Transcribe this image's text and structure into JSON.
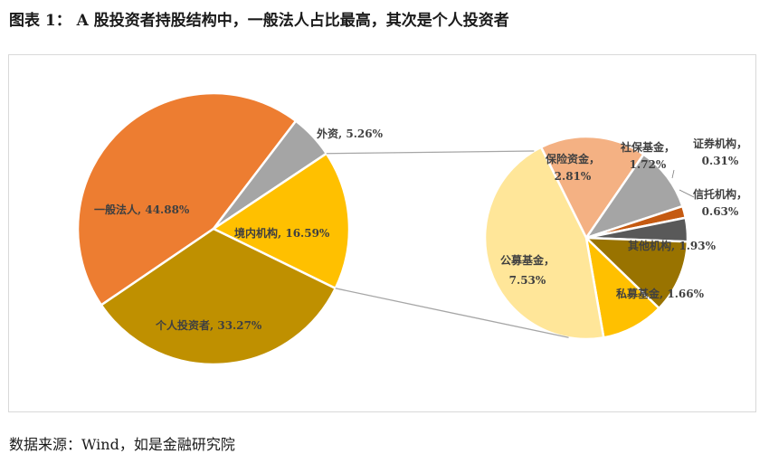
{
  "figure": {
    "title": "图表 1：  A 股投资者持股结构中，一般法人占比最高，其次是个人投资者",
    "source": "数据来源：Wind，如是金融研究院"
  },
  "chart_data": [
    {
      "type": "pie",
      "title": "",
      "slices": [
        {
          "name": "一般法人",
          "value": 44.88,
          "label": "一般法人, 44.88%",
          "color": "#ED7D31"
        },
        {
          "name": "外资",
          "value": 5.26,
          "label": "外资, 5.26%",
          "color": "#A5A5A5"
        },
        {
          "name": "境内机构",
          "value": 16.59,
          "label": "境内机构, 16.59%",
          "color": "#FFC000"
        },
        {
          "name": "个人投资者",
          "value": 33.27,
          "label": "个人投资者, 33.27%",
          "color": "#BF9000"
        }
      ]
    },
    {
      "type": "pie",
      "title": "",
      "detail_of": "境内机构",
      "slices": [
        {
          "name": "保险资金",
          "value": 2.81,
          "label": "保险资金, 2.81%",
          "color": "#F4B183"
        },
        {
          "name": "社保基金",
          "value": 1.72,
          "label": "社保基金, 1.72%",
          "color": "#A5A5A5"
        },
        {
          "name": "证券机构",
          "value": 0.31,
          "label": "证券机构, 0.31%",
          "color": "#C55A11"
        },
        {
          "name": "信托机构",
          "value": 0.63,
          "label": "信托机构, 0.63%",
          "color": "#595959"
        },
        {
          "name": "其他机构",
          "value": 1.93,
          "label": "其他机构, 1.93%",
          "color": "#997300"
        },
        {
          "name": "私募基金",
          "value": 1.66,
          "label": "私募基金, 1.66%",
          "color": "#FFC000"
        },
        {
          "name": "公募基金",
          "value": 7.53,
          "label": "公募基金, 7.53%",
          "color": "#FFE699"
        }
      ]
    }
  ]
}
